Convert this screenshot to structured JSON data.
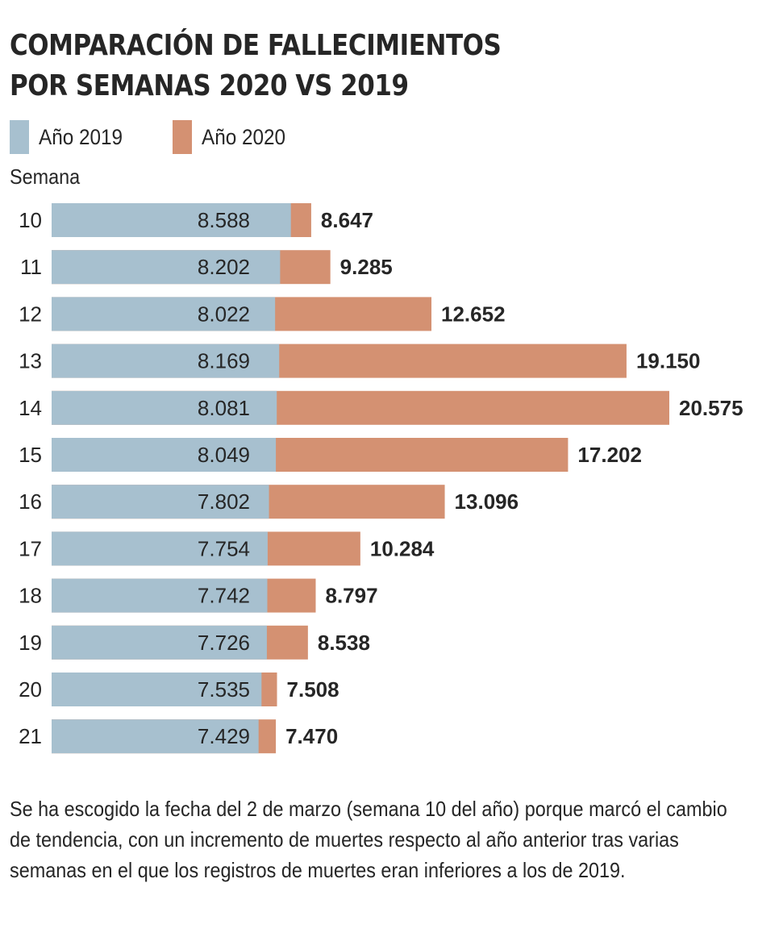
{
  "title_line1": "COMPARACIÓN DE FALLECIMIENTOS",
  "title_line2": "POR SEMANAS 2020 VS 2019",
  "legend": [
    {
      "label": "Año 2019",
      "color": "#a7c0cf"
    },
    {
      "label": "Año 2020",
      "color": "#d49172"
    }
  ],
  "axis_title": "Semana",
  "footnote": "Se ha escogido la fecha del 2 de marzo (semana 10 del año) porque marcó el cambio de tendencia, con un incremento de muertes respecto al año anterior tras varias semanas en el que los registros de muertes eran inferiores a los de 2019.",
  "chart_data": {
    "type": "bar",
    "orientation": "horizontal",
    "title": "COMPARACIÓN DE FALLECIMIENTOS POR SEMANAS 2020 VS 2019",
    "ylabel": "Semana",
    "xlabel": "",
    "categories": [
      "10",
      "11",
      "12",
      "13",
      "14",
      "15",
      "16",
      "17",
      "18",
      "19",
      "20",
      "21"
    ],
    "series": [
      {
        "name": "Año 2019",
        "color": "#a7c0cf",
        "values": [
          8588,
          8202,
          8022,
          8169,
          8081,
          8049,
          7802,
          7754,
          7742,
          7726,
          7535,
          7429
        ],
        "labels": [
          "8.588",
          "8.202",
          "8.022",
          "8.169",
          "8.081",
          "8.049",
          "7.802",
          "7.754",
          "7.742",
          "7.726",
          "7.535",
          "7.429"
        ]
      },
      {
        "name": "Año 2020",
        "color": "#d49172",
        "values": [
          8647,
          9285,
          12652,
          19150,
          20575,
          17202,
          13096,
          10284,
          8797,
          8538,
          7508,
          7470
        ],
        "labels": [
          "8.647",
          "9.285",
          "12.652",
          "19.150",
          "20.575",
          "17.202",
          "13.096",
          "10.284",
          "8.797",
          "8.538",
          "7.508",
          "7.470"
        ]
      }
    ],
    "xlim": [
      0,
      20575
    ],
    "grid": false,
    "legend_position": "top-left"
  }
}
